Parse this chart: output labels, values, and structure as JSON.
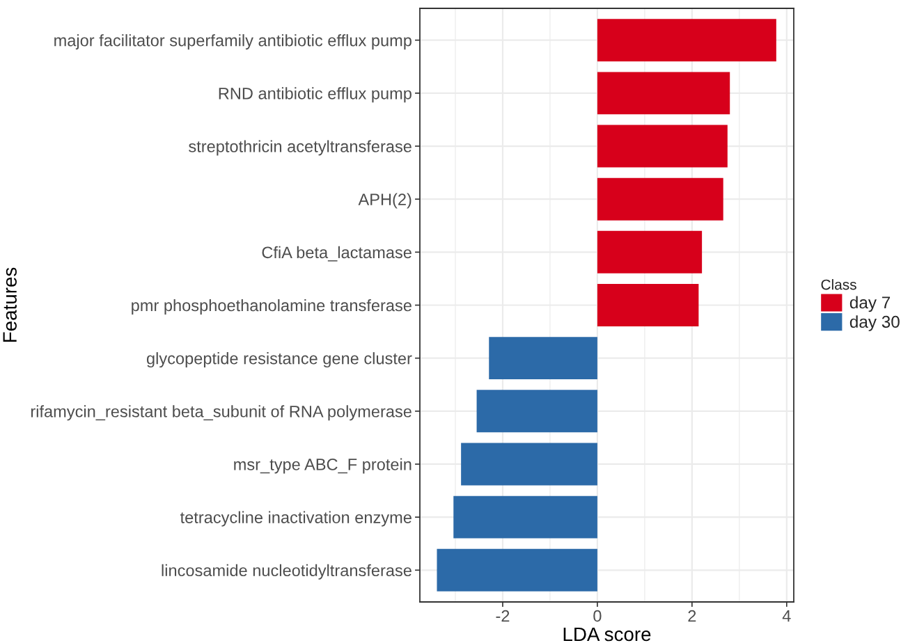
{
  "chart_data": {
    "type": "bar",
    "orientation": "horizontal",
    "xlabel": "LDA score",
    "ylabel": "Features",
    "legend_title": "Class",
    "categories": [
      "major facilitator superfamily antibiotic efflux pump",
      "RND antibiotic efflux pump",
      "streptothricin acetyltransferase",
      "APH(2)",
      "CfiA beta_lactamase",
      "pmr phosphoethanolamine transferase",
      "glycopeptide resistance gene cluster",
      "rifamycin_resistant beta_subunit of RNA polymerase",
      "msr_type ABC_F protein",
      "tetracycline inactivation enzyme",
      "lincosamide nucleotidyltransferase"
    ],
    "series": [
      {
        "name": "day 7",
        "color": "#d7001b",
        "values": [
          3.78,
          2.8,
          2.75,
          2.66,
          2.21,
          2.14,
          null,
          null,
          null,
          null,
          null
        ]
      },
      {
        "name": "day 30",
        "color": "#2c6aa8",
        "values": [
          null,
          null,
          null,
          null,
          null,
          null,
          -2.29,
          -2.55,
          -2.88,
          -3.04,
          -3.39
        ]
      }
    ],
    "xlim": [
      -3.75,
      4.15
    ],
    "xticks": [
      -2,
      0,
      2,
      4
    ],
    "grid": true,
    "legend": "right"
  }
}
